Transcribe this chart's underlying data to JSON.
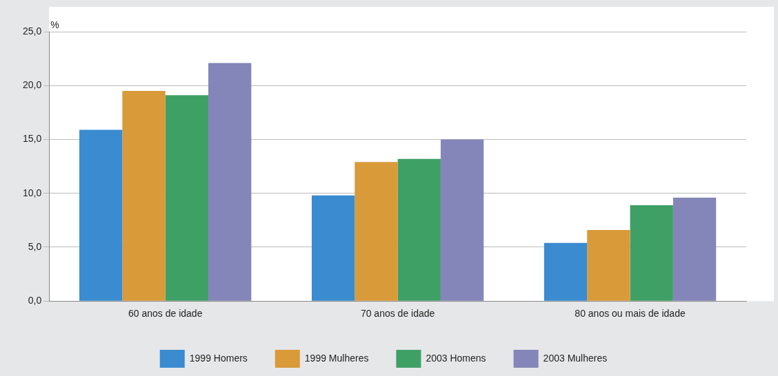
{
  "chart_data": {
    "type": "bar",
    "ylabel": "%",
    "categories": [
      "60 anos de idade",
      "70 anos de idade",
      "80 anos ou mais de idade"
    ],
    "series": [
      {
        "name": "1999 Homers",
        "color": "#3a8bd0",
        "values": [
          15.9,
          9.8,
          5.4
        ]
      },
      {
        "name": "1999 Mulheres",
        "color": "#d99a3a",
        "values": [
          19.5,
          12.9,
          6.6
        ]
      },
      {
        "name": "2003 Homens",
        "color": "#3fa066",
        "values": [
          19.1,
          13.2,
          8.9
        ]
      },
      {
        "name": "2003 Mulheres",
        "color": "#8485b8",
        "values": [
          22.1,
          15.0,
          9.6
        ]
      }
    ],
    "ylim": [
      0,
      25
    ],
    "yticks": [
      {
        "value": 0,
        "label": "0,0"
      },
      {
        "value": 5,
        "label": "5,0"
      },
      {
        "value": 10,
        "label": "10,0"
      },
      {
        "value": 15,
        "label": "15,0"
      },
      {
        "value": 20,
        "label": "20,0"
      },
      {
        "value": 25,
        "label": "25,0"
      }
    ],
    "grid": "y",
    "legend": "bottom"
  }
}
